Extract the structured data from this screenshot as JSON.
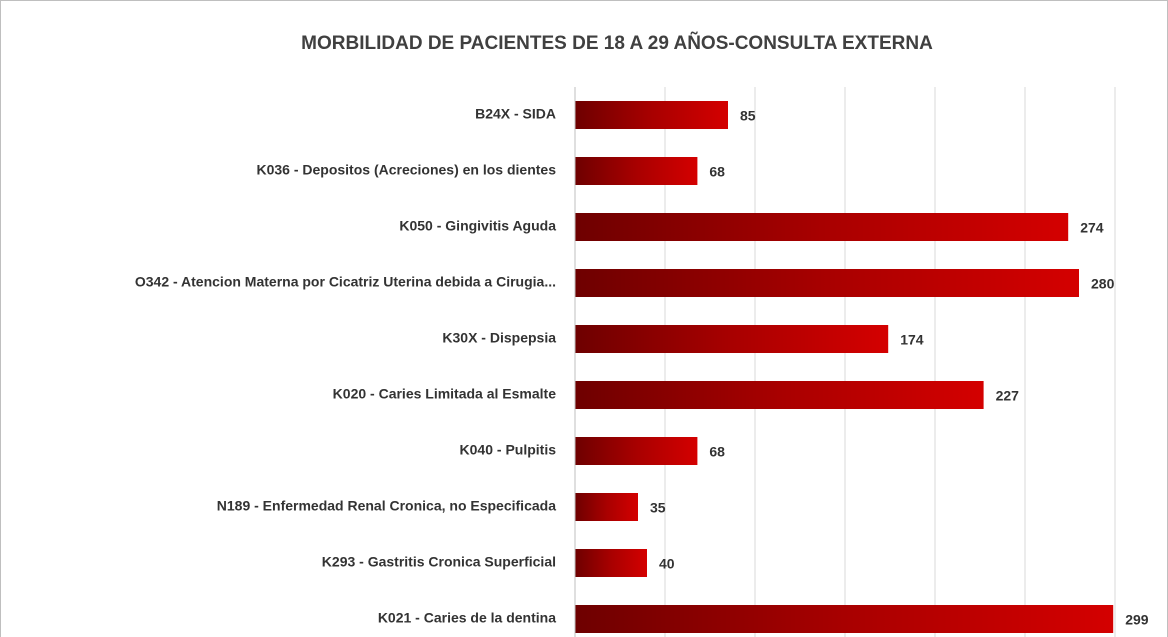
{
  "chart_data": {
    "type": "bar",
    "orientation": "horizontal",
    "title": "MORBILIDAD DE PACIENTES DE 18 A 29 AÑOS-CONSULTA EXTERNA",
    "categories": [
      "B24X - SIDA",
      "K036 - Depositos (Acreciones) en los dientes",
      "K050 - Gingivitis Aguda",
      "O342 - Atencion Materna por Cicatriz Uterina debida a Cirugia...",
      "K30X - Dispepsia",
      "K020 - Caries Limitada al Esmalte",
      "K040 - Pulpitis",
      "N189 - Enfermedad Renal Cronica, no Especificada",
      "K293 - Gastritis Cronica Superficial",
      "K021 - Caries de la dentina"
    ],
    "values": [
      85,
      68,
      274,
      280,
      174,
      227,
      68,
      35,
      40,
      299
    ],
    "color": "#c00000",
    "xlim": [
      0,
      300
    ],
    "xticks": [
      0,
      50,
      100,
      150,
      200,
      250,
      300
    ],
    "grid": true
  }
}
